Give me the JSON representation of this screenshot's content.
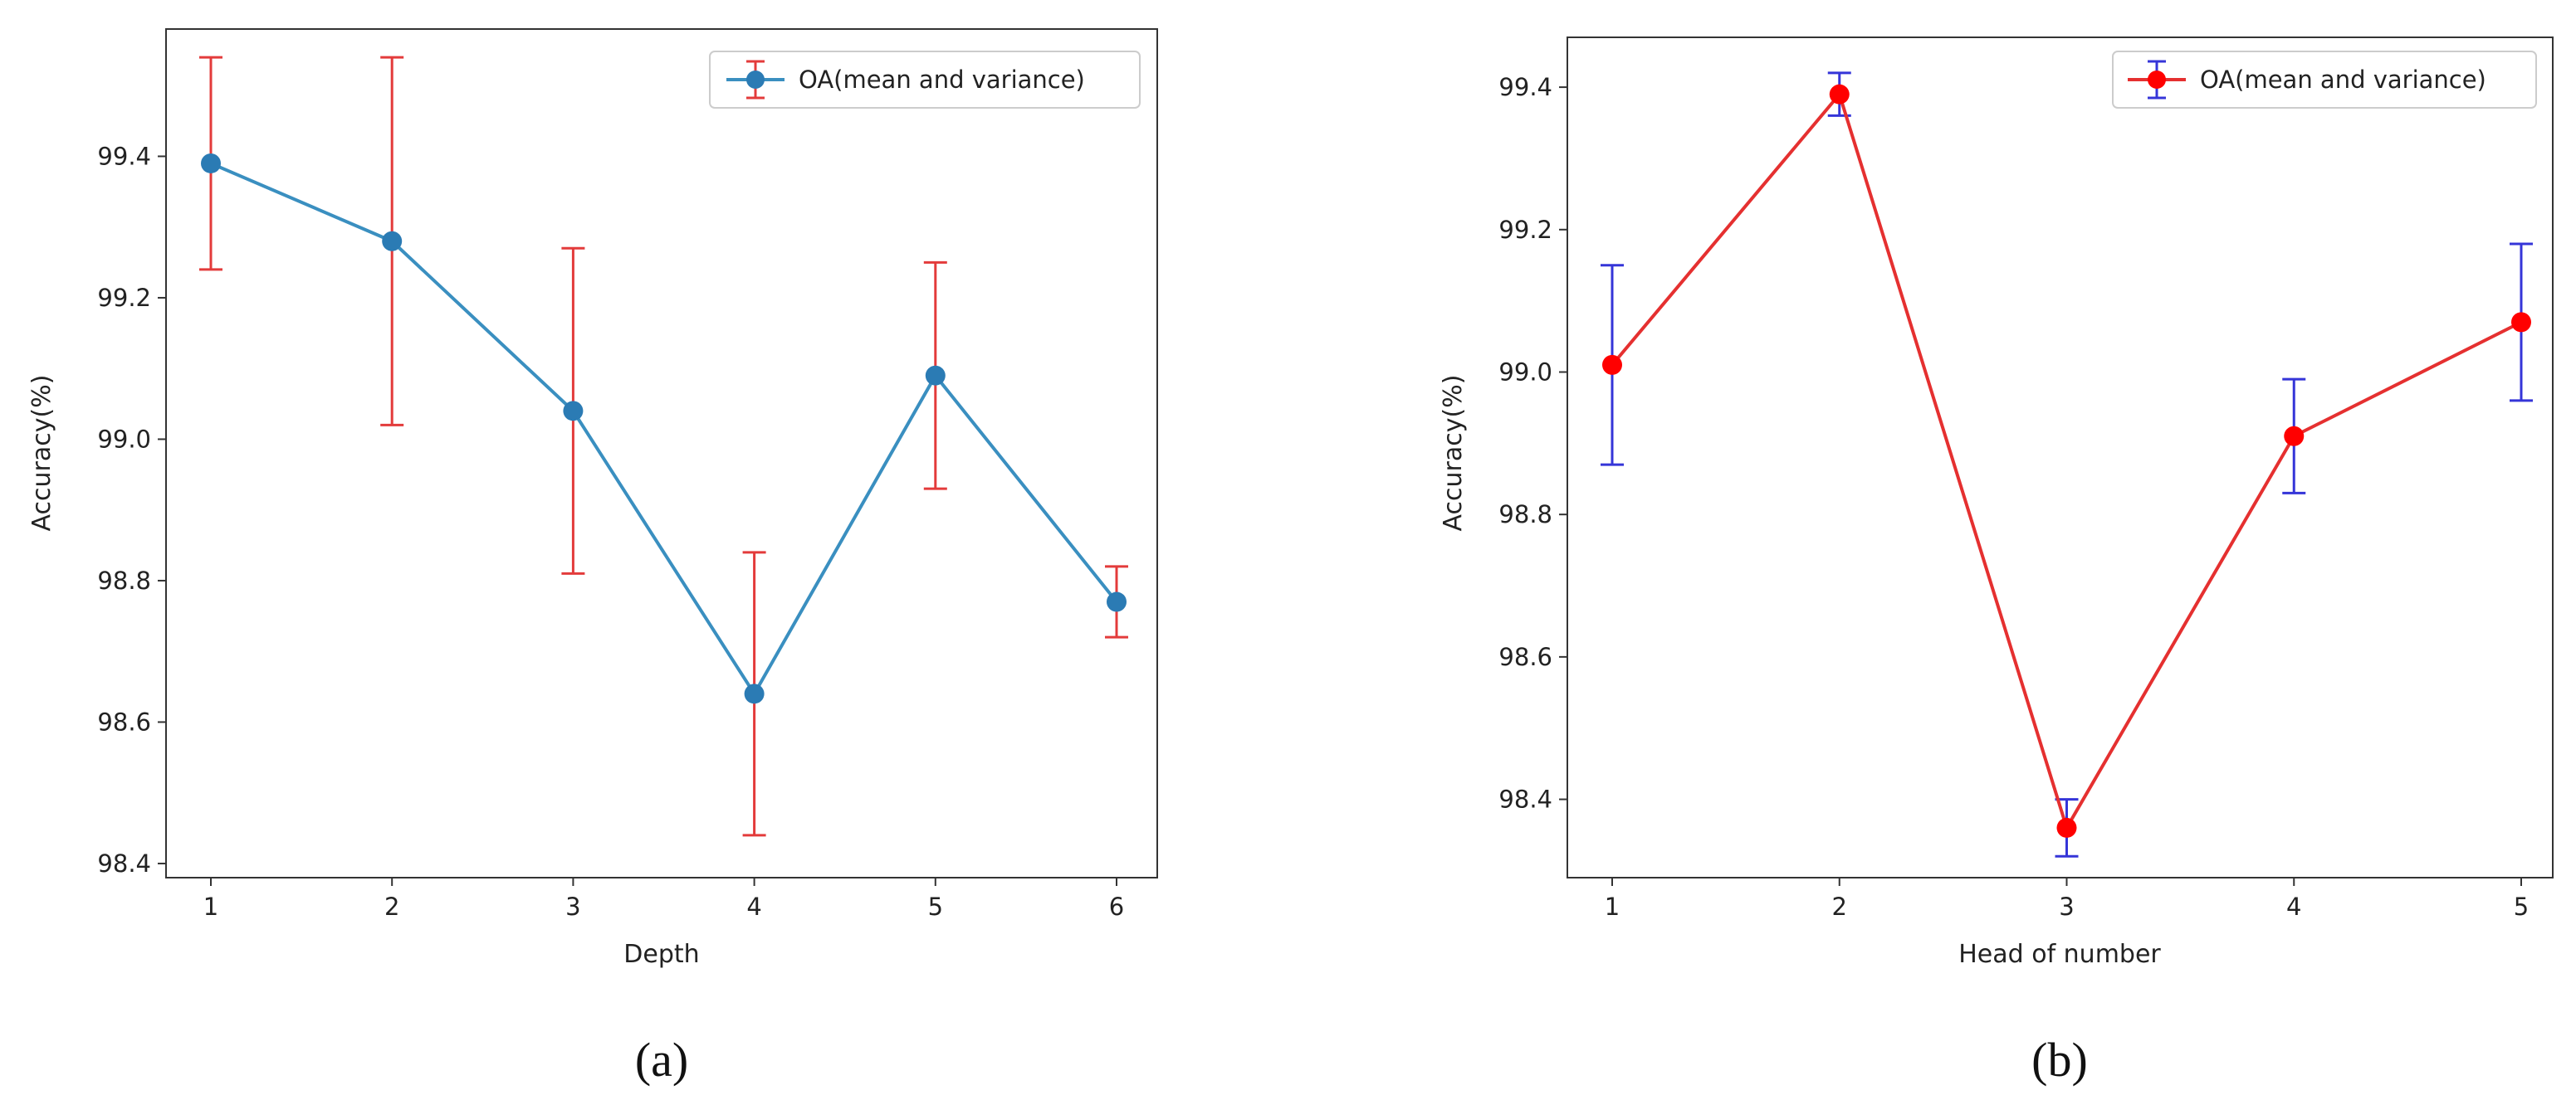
{
  "chart_data": [
    {
      "type": "line",
      "panel_label": "(a)",
      "title": "",
      "xlabel": "Depth",
      "ylabel": "Accuracy(%)",
      "x": [
        1,
        2,
        3,
        4,
        5,
        6
      ],
      "x_ticks": [
        "1",
        "2",
        "3",
        "4",
        "5",
        "6"
      ],
      "ylim": [
        98.38,
        99.58
      ],
      "y_ticks": [
        "98.4",
        "98.6",
        "98.8",
        "99.0",
        "99.2",
        "99.4"
      ],
      "series": [
        {
          "name": "OA(mean and variance)",
          "values": [
            99.39,
            99.28,
            99.04,
            98.64,
            99.09,
            98.77
          ],
          "error_low": [
            99.24,
            99.02,
            98.81,
            98.44,
            98.93,
            98.72
          ],
          "error_high": [
            99.54,
            99.54,
            99.27,
            98.84,
            99.25,
            98.82
          ],
          "line_color": "#3a8fc0",
          "marker_color": "#2b7bb4",
          "error_color": "#e33b3b"
        }
      ],
      "legend_position": "top-right",
      "grid": false
    },
    {
      "type": "line",
      "panel_label": "(b)",
      "title": "",
      "xlabel": "Head of number",
      "ylabel": "Accuracy(%)",
      "x": [
        1,
        2,
        3,
        4,
        5
      ],
      "x_ticks": [
        "1",
        "2",
        "3",
        "4",
        "5"
      ],
      "ylim": [
        98.29,
        99.47
      ],
      "y_ticks": [
        "98.4",
        "98.6",
        "98.8",
        "99.0",
        "99.2",
        "99.4"
      ],
      "series": [
        {
          "name": "OA(mean and variance)",
          "values": [
            99.01,
            99.39,
            98.36,
            98.91,
            99.07
          ],
          "error_low": [
            98.87,
            99.36,
            98.32,
            98.83,
            98.96
          ],
          "error_high": [
            99.15,
            99.42,
            98.4,
            98.99,
            99.18
          ],
          "line_color": "#e53030",
          "marker_color": "#ff0000",
          "error_color": "#3535d8"
        }
      ],
      "legend_position": "top-right",
      "grid": false
    }
  ]
}
